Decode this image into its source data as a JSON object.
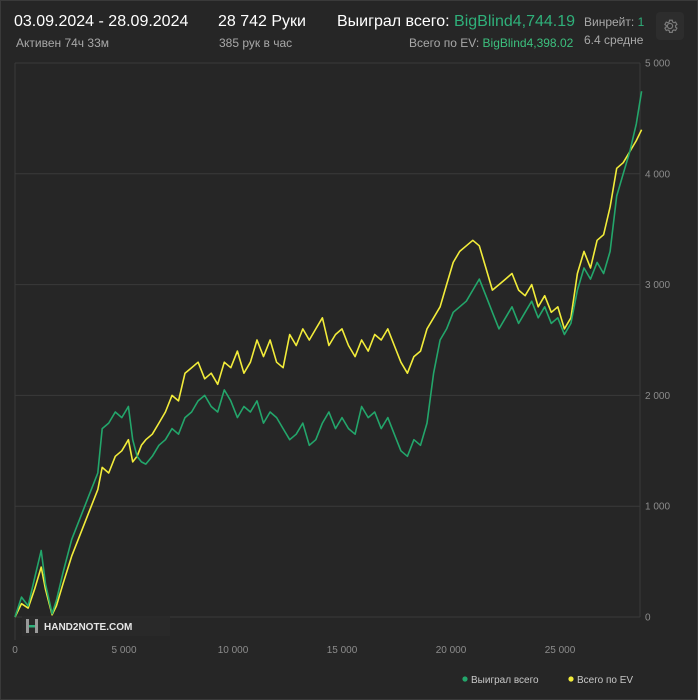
{
  "header": {
    "date_range": "03.09.2024 - 28.09.2024",
    "active_time": "Активен 74ч 33м",
    "hands": "28 742 Руки",
    "hands_per_hour": "385 рук в час",
    "won_label": "Выиграл всего:",
    "won_value": "BigBlind4,744.19",
    "ev_label": "Всего по EV:",
    "ev_value": "BigBlind4,398.02",
    "winrate_label": "Винрейт:",
    "winrate_value": "1",
    "winrate_sub": "6.4 средне"
  },
  "watermark": {
    "text": "HAND2NOTE.COM",
    "logo_icon": "hand2note-logo-icon"
  },
  "settings": {
    "icon": "gear-icon"
  },
  "colors": {
    "background": "#262626",
    "grid": "#3a3a3a",
    "won": "#23a66b",
    "ev": "#f2ec3a",
    "text_green": "#2fb07a"
  },
  "chart_data": {
    "type": "line",
    "title": "",
    "xlabel": "",
    "ylabel": "",
    "xlim": [
      0,
      28742
    ],
    "ylim": [
      -100,
      5000
    ],
    "x_ticks": [
      0,
      5000,
      10000,
      15000,
      20000,
      25000
    ],
    "x_tick_labels": [
      "0",
      "5 000",
      "10 000",
      "15 000",
      "20 000",
      "25 000"
    ],
    "y_ticks": [
      0,
      1000,
      2000,
      3000,
      4000,
      5000
    ],
    "y_tick_labels": [
      "0",
      "1 000",
      "2 000",
      "3 000",
      "4 000",
      "5 000"
    ],
    "grid": true,
    "legend_position": "bottom-right",
    "series": [
      {
        "name": "Выиграл всего",
        "color": "#23a66b",
        "x": [
          0,
          300,
          600,
          900,
          1200,
          1400,
          1700,
          1900,
          2200,
          2600,
          3000,
          3400,
          3800,
          4000,
          4300,
          4600,
          4900,
          5200,
          5400,
          5600,
          5800,
          6000,
          6300,
          6600,
          6900,
          7200,
          7500,
          7800,
          8100,
          8400,
          8700,
          9000,
          9300,
          9600,
          9900,
          10200,
          10500,
          10800,
          11100,
          11400,
          11700,
          12000,
          12300,
          12600,
          12900,
          13200,
          13500,
          13800,
          14100,
          14400,
          14700,
          15000,
          15300,
          15600,
          15900,
          16200,
          16500,
          16800,
          17100,
          17400,
          17700,
          18000,
          18300,
          18600,
          18900,
          19200,
          19500,
          19800,
          20100,
          20400,
          20700,
          21000,
          21300,
          21600,
          21900,
          22200,
          22500,
          22800,
          23100,
          23400,
          23700,
          24000,
          24300,
          24600,
          24900,
          25200,
          25500,
          25800,
          26100,
          26400,
          26700,
          27000,
          27300,
          27600,
          27900,
          28200,
          28500,
          28742
        ],
        "values": [
          0,
          180,
          100,
          350,
          600,
          300,
          30,
          150,
          400,
          700,
          900,
          1100,
          1300,
          1700,
          1750,
          1850,
          1800,
          1900,
          1600,
          1450,
          1400,
          1380,
          1450,
          1550,
          1600,
          1700,
          1650,
          1800,
          1850,
          1950,
          2000,
          1900,
          1850,
          2050,
          1950,
          1800,
          1900,
          1850,
          1950,
          1750,
          1850,
          1800,
          1700,
          1600,
          1650,
          1750,
          1550,
          1600,
          1750,
          1850,
          1700,
          1800,
          1700,
          1650,
          1900,
          1800,
          1850,
          1700,
          1800,
          1650,
          1500,
          1450,
          1600,
          1550,
          1750,
          2200,
          2500,
          2600,
          2750,
          2800,
          2850,
          2950,
          3050,
          2900,
          2750,
          2600,
          2700,
          2800,
          2650,
          2750,
          2850,
          2700,
          2800,
          2650,
          2700,
          2550,
          2650,
          2950,
          3150,
          3050,
          3200,
          3100,
          3300,
          3800,
          4000,
          4200,
          4450,
          4744.19
        ]
      },
      {
        "name": "Всего по EV",
        "color": "#f2ec3a",
        "x": [
          0,
          300,
          600,
          900,
          1200,
          1400,
          1700,
          1900,
          2200,
          2600,
          3000,
          3400,
          3800,
          4000,
          4300,
          4600,
          4900,
          5200,
          5400,
          5600,
          5800,
          6000,
          6300,
          6600,
          6900,
          7200,
          7500,
          7800,
          8100,
          8400,
          8700,
          9000,
          9300,
          9600,
          9900,
          10200,
          10500,
          10800,
          11100,
          11400,
          11700,
          12000,
          12300,
          12600,
          12900,
          13200,
          13500,
          13800,
          14100,
          14400,
          14700,
          15000,
          15300,
          15600,
          15900,
          16200,
          16500,
          16800,
          17100,
          17400,
          17700,
          18000,
          18300,
          18600,
          18900,
          19200,
          19500,
          19800,
          20100,
          20400,
          20700,
          21000,
          21300,
          21600,
          21900,
          22200,
          22500,
          22800,
          23100,
          23400,
          23700,
          24000,
          24300,
          24600,
          24900,
          25200,
          25500,
          25800,
          26100,
          26400,
          26700,
          27000,
          27300,
          27600,
          27900,
          28200,
          28500,
          28742
        ],
        "values": [
          0,
          120,
          80,
          250,
          450,
          250,
          20,
          100,
          300,
          550,
          750,
          950,
          1150,
          1350,
          1300,
          1450,
          1500,
          1600,
          1400,
          1450,
          1550,
          1600,
          1650,
          1750,
          1850,
          2000,
          1950,
          2200,
          2250,
          2300,
          2150,
          2200,
          2100,
          2300,
          2250,
          2400,
          2200,
          2300,
          2500,
          2350,
          2500,
          2300,
          2250,
          2550,
          2450,
          2600,
          2500,
          2600,
          2700,
          2450,
          2550,
          2600,
          2450,
          2350,
          2500,
          2400,
          2550,
          2500,
          2600,
          2450,
          2300,
          2200,
          2350,
          2400,
          2600,
          2700,
          2800,
          3000,
          3200,
          3300,
          3350,
          3400,
          3350,
          3150,
          2950,
          3000,
          3050,
          3100,
          2950,
          2900,
          3000,
          2800,
          2900,
          2750,
          2800,
          2600,
          2700,
          3100,
          3300,
          3150,
          3400,
          3450,
          3700,
          4050,
          4100,
          4200,
          4300,
          4398.02
        ]
      }
    ]
  }
}
